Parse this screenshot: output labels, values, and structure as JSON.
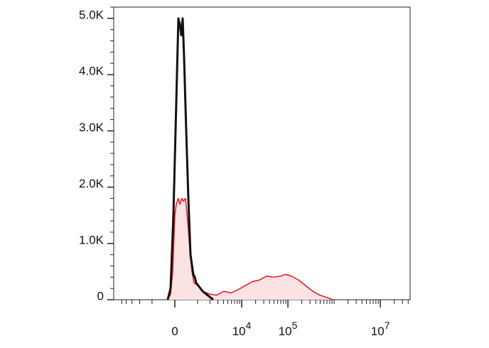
{
  "chart_data": {
    "type": "histogram-overlay",
    "xscale": "arcsinh",
    "xscale_width": 716,
    "xlim": [
      -7500,
      44000000
    ],
    "xticks": [
      {
        "value": 0,
        "label": "0"
      },
      {
        "value": 10000,
        "label": "10",
        "sup": "4"
      },
      {
        "value": 100000,
        "label": "10",
        "sup": "5"
      },
      {
        "value": 10000000,
        "label": "10",
        "sup": "7"
      }
    ],
    "xminorticks": [
      -5000,
      -4000,
      -3000,
      -2000,
      -1000,
      1000,
      2000,
      3000,
      4000,
      5000,
      6000,
      7000,
      8000,
      9000,
      20000,
      30000,
      40000,
      50000,
      60000,
      70000,
      80000,
      90000,
      200000,
      300000,
      400000,
      500000,
      600000,
      700000,
      800000,
      900000,
      1000000,
      2000000,
      3000000,
      4000000,
      5000000,
      6000000,
      7000000,
      8000000,
      9000000,
      20000000,
      30000000,
      40000000
    ],
    "ylim": [
      0,
      5200
    ],
    "yticks": [
      0,
      {
        "value": 1000,
        "label": "1.0K"
      },
      {
        "value": 2000,
        "label": "2.0K"
      },
      {
        "value": 3000,
        "label": "3.0K"
      },
      {
        "value": 4000,
        "label": "4.0K"
      },
      {
        "value": 5000,
        "label": "5.0K"
      }
    ],
    "yminorticks": [
      200,
      400,
      600,
      800,
      1200,
      1400,
      1600,
      1800,
      2200,
      2400,
      2600,
      2800,
      3200,
      3400,
      3600,
      3800,
      4200,
      4400,
      4600,
      4800,
      5200
    ],
    "series": [
      {
        "color": "#e8141b",
        "fill": "#fbe3e4",
        "x": [
          -259,
          -153,
          -76,
          0,
          51,
          127,
          179,
          259,
          314,
          399,
          489,
          583,
          684,
          795,
          1000,
          1339,
          1973,
          2845,
          4093,
          5859,
          8363,
          11929,
          17005,
          24244,
          34561,
          49240,
          70175,
          89930,
          119357,
          170122,
          242438,
          345542,
          492393,
          701752,
          931516
        ],
        "values": [
          0,
          100,
          500,
          1500,
          1700,
          1800,
          1700,
          1800,
          1750,
          1800,
          1400,
          900,
          500,
          300,
          250,
          150,
          100,
          80,
          150,
          120,
          180,
          250,
          320,
          350,
          420,
          400,
          420,
          450,
          420,
          350,
          250,
          150,
          80,
          40,
          0
        ]
      },
      {
        "color": "#111111",
        "x": [
          -259,
          -153,
          -51,
          51,
          127,
          179,
          232,
          286,
          342,
          428,
          519,
          616,
          757,
          833,
          915,
          1339,
          1973,
          2371
        ],
        "values": [
          0,
          200,
          1500,
          3500,
          5000,
          4900,
          4700,
          5000,
          4300,
          3000,
          1800,
          800,
          450,
          400,
          300,
          150,
          50,
          0
        ]
      }
    ]
  }
}
